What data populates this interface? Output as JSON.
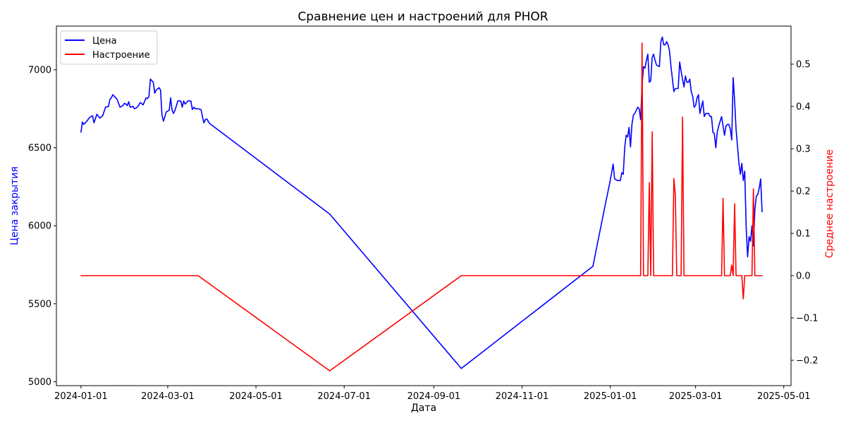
{
  "chart_data": {
    "type": "line",
    "title": "Сравнение цен и настроений для PHOR",
    "xlabel": "Дата",
    "ylabel_left": "Цена закрытия",
    "ylabel_right": "Среднее настроение",
    "x_ticks": [
      "2024-01-01",
      "2024-03-01",
      "2024-05-01",
      "2024-07-01",
      "2024-09-01",
      "2024-11-01",
      "2025-01-01",
      "2025-03-01",
      "2025-05-01"
    ],
    "y_left_ticks": [
      5000,
      5500,
      6000,
      6500,
      7000
    ],
    "y_right_ticks": [
      -0.2,
      -0.1,
      0.0,
      0.1,
      0.2,
      0.3,
      0.4,
      0.5
    ],
    "x_range": [
      "2023-12-15",
      "2025-05-06"
    ],
    "y_left_range": [
      4975,
      7280
    ],
    "y_right_range": [
      -0.26,
      0.59
    ],
    "legend": {
      "placement": "top-left",
      "entries": [
        "Цена",
        "Настроение"
      ]
    },
    "colors": {
      "price": "#0000ff",
      "sentiment": "#ff0000"
    },
    "grid": false,
    "series": [
      {
        "name": "Цена",
        "axis": "left",
        "color": "#0000ff",
        "points": [
          [
            "2024-01-01",
            6600
          ],
          [
            "2024-01-02",
            6665
          ],
          [
            "2024-01-03",
            6650
          ],
          [
            "2024-01-05",
            6670
          ],
          [
            "2024-01-07",
            6695
          ],
          [
            "2024-01-09",
            6705
          ],
          [
            "2024-01-10",
            6660
          ],
          [
            "2024-01-12",
            6715
          ],
          [
            "2024-01-14",
            6690
          ],
          [
            "2024-01-16",
            6705
          ],
          [
            "2024-01-18",
            6760
          ],
          [
            "2024-01-20",
            6765
          ],
          [
            "2024-01-21",
            6810
          ],
          [
            "2024-01-22",
            6820
          ],
          [
            "2024-01-23",
            6840
          ],
          [
            "2024-01-25",
            6820
          ],
          [
            "2024-01-26",
            6810
          ],
          [
            "2024-01-28",
            6760
          ],
          [
            "2024-01-30",
            6770
          ],
          [
            "2024-01-31",
            6785
          ],
          [
            "2024-02-01",
            6780
          ],
          [
            "2024-02-02",
            6770
          ],
          [
            "2024-02-03",
            6795
          ],
          [
            "2024-02-04",
            6760
          ],
          [
            "2024-02-06",
            6765
          ],
          [
            "2024-02-07",
            6750
          ],
          [
            "2024-02-09",
            6760
          ],
          [
            "2024-02-11",
            6790
          ],
          [
            "2024-02-13",
            6775
          ],
          [
            "2024-02-15",
            6820
          ],
          [
            "2024-02-16",
            6815
          ],
          [
            "2024-02-17",
            6830
          ],
          [
            "2024-02-18",
            6940
          ],
          [
            "2024-02-20",
            6920
          ],
          [
            "2024-02-21",
            6850
          ],
          [
            "2024-02-22",
            6870
          ],
          [
            "2024-02-24",
            6885
          ],
          [
            "2024-02-25",
            6870
          ],
          [
            "2024-02-26",
            6710
          ],
          [
            "2024-02-27",
            6670
          ],
          [
            "2024-02-28",
            6700
          ],
          [
            "2024-02-29",
            6730
          ],
          [
            "2024-03-02",
            6740
          ],
          [
            "2024-03-03",
            6820
          ],
          [
            "2024-03-04",
            6740
          ],
          [
            "2024-03-05",
            6720
          ],
          [
            "2024-03-06",
            6740
          ],
          [
            "2024-03-07",
            6770
          ],
          [
            "2024-03-08",
            6800
          ],
          [
            "2024-03-10",
            6800
          ],
          [
            "2024-03-11",
            6760
          ],
          [
            "2024-03-12",
            6800
          ],
          [
            "2024-03-13",
            6780
          ],
          [
            "2024-03-15",
            6800
          ],
          [
            "2024-03-17",
            6800
          ],
          [
            "2024-03-18",
            6745
          ],
          [
            "2024-03-19",
            6760
          ],
          [
            "2024-03-20",
            6750
          ],
          [
            "2024-03-22",
            6750
          ],
          [
            "2024-03-24",
            6745
          ],
          [
            "2024-03-25",
            6700
          ],
          [
            "2024-03-26",
            6660
          ],
          [
            "2024-03-27",
            6680
          ],
          [
            "2024-03-28",
            6685
          ],
          [
            "2024-03-30",
            6655
          ],
          [
            "2024-06-21",
            6075
          ],
          [
            "2024-09-20",
            5085
          ],
          [
            "2024-12-20",
            5740
          ],
          [
            "2024-12-28",
            6110
          ],
          [
            "2025-01-01",
            6290
          ],
          [
            "2025-01-03",
            6395
          ],
          [
            "2025-01-04",
            6300
          ],
          [
            "2025-01-06",
            6290
          ],
          [
            "2025-01-08",
            6290
          ],
          [
            "2025-01-09",
            6340
          ],
          [
            "2025-01-10",
            6330
          ],
          [
            "2025-01-11",
            6500
          ],
          [
            "2025-01-12",
            6580
          ],
          [
            "2025-01-13",
            6570
          ],
          [
            "2025-01-14",
            6630
          ],
          [
            "2025-01-15",
            6505
          ],
          [
            "2025-01-16",
            6650
          ],
          [
            "2025-01-17",
            6710
          ],
          [
            "2025-01-18",
            6720
          ],
          [
            "2025-01-20",
            6760
          ],
          [
            "2025-01-21",
            6750
          ],
          [
            "2025-01-22",
            6680
          ],
          [
            "2025-01-23",
            6900
          ],
          [
            "2025-01-24",
            7020
          ],
          [
            "2025-01-25",
            7010
          ],
          [
            "2025-01-26",
            7060
          ],
          [
            "2025-01-27",
            7100
          ],
          [
            "2025-01-28",
            6920
          ],
          [
            "2025-01-29",
            6930
          ],
          [
            "2025-01-30",
            7080
          ],
          [
            "2025-01-31",
            7100
          ],
          [
            "2025-02-01",
            7060
          ],
          [
            "2025-02-02",
            7030
          ],
          [
            "2025-02-04",
            7020
          ],
          [
            "2025-02-05",
            7180
          ],
          [
            "2025-02-06",
            7210
          ],
          [
            "2025-02-07",
            7160
          ],
          [
            "2025-02-08",
            7160
          ],
          [
            "2025-02-09",
            7180
          ],
          [
            "2025-02-10",
            7160
          ],
          [
            "2025-02-11",
            7120
          ],
          [
            "2025-02-12",
            7020
          ],
          [
            "2025-02-13",
            6940
          ],
          [
            "2025-02-14",
            6860
          ],
          [
            "2025-02-15",
            6880
          ],
          [
            "2025-02-17",
            6880
          ],
          [
            "2025-02-18",
            7050
          ],
          [
            "2025-02-19",
            6990
          ],
          [
            "2025-02-20",
            6940
          ],
          [
            "2025-02-21",
            6890
          ],
          [
            "2025-02-22",
            6960
          ],
          [
            "2025-02-23",
            6920
          ],
          [
            "2025-02-24",
            6920
          ],
          [
            "2025-02-25",
            6940
          ],
          [
            "2025-02-26",
            6860
          ],
          [
            "2025-02-27",
            6830
          ],
          [
            "2025-02-28",
            6760
          ],
          [
            "2025-03-01",
            6770
          ],
          [
            "2025-03-02",
            6820
          ],
          [
            "2025-03-03",
            6840
          ],
          [
            "2025-03-04",
            6720
          ],
          [
            "2025-03-05",
            6760
          ],
          [
            "2025-03-06",
            6800
          ],
          [
            "2025-03-07",
            6700
          ],
          [
            "2025-03-08",
            6720
          ],
          [
            "2025-03-10",
            6720
          ],
          [
            "2025-03-11",
            6700
          ],
          [
            "2025-03-12",
            6700
          ],
          [
            "2025-03-13",
            6600
          ],
          [
            "2025-03-14",
            6590
          ],
          [
            "2025-03-15",
            6500
          ],
          [
            "2025-03-16",
            6600
          ],
          [
            "2025-03-17",
            6640
          ],
          [
            "2025-03-19",
            6700
          ],
          [
            "2025-03-20",
            6640
          ],
          [
            "2025-03-21",
            6580
          ],
          [
            "2025-03-22",
            6640
          ],
          [
            "2025-03-23",
            6650
          ],
          [
            "2025-03-24",
            6650
          ],
          [
            "2025-03-25",
            6620
          ],
          [
            "2025-03-26",
            6550
          ],
          [
            "2025-03-27",
            6950
          ],
          [
            "2025-03-28",
            6800
          ],
          [
            "2025-03-29",
            6620
          ],
          [
            "2025-03-30",
            6510
          ],
          [
            "2025-03-31",
            6400
          ],
          [
            "2025-04-01",
            6330
          ],
          [
            "2025-04-02",
            6400
          ],
          [
            "2025-04-03",
            6290
          ],
          [
            "2025-04-04",
            6350
          ],
          [
            "2025-04-05",
            5990
          ],
          [
            "2025-04-06",
            5800
          ],
          [
            "2025-04-07",
            5930
          ],
          [
            "2025-04-08",
            5900
          ],
          [
            "2025-04-09",
            6000
          ],
          [
            "2025-04-10",
            5870
          ],
          [
            "2025-04-11",
            6100
          ],
          [
            "2025-04-12",
            6190
          ],
          [
            "2025-04-13",
            6200
          ],
          [
            "2025-04-14",
            6240
          ],
          [
            "2025-04-15",
            6300
          ],
          [
            "2025-04-16",
            6090
          ]
        ]
      },
      {
        "name": "Настроение",
        "axis": "right",
        "color": "#ff0000",
        "points": [
          [
            "2024-01-01",
            0.0
          ],
          [
            "2024-03-22",
            0.0
          ],
          [
            "2024-06-21",
            -0.225
          ],
          [
            "2024-09-20",
            0.0
          ],
          [
            "2025-01-22",
            0.0
          ],
          [
            "2025-01-23",
            0.55
          ],
          [
            "2025-01-24",
            0.0
          ],
          [
            "2025-01-27",
            0.0
          ],
          [
            "2025-01-28",
            0.22
          ],
          [
            "2025-01-29",
            0.0
          ],
          [
            "2025-01-30",
            0.34
          ],
          [
            "2025-01-31",
            0.0
          ],
          [
            "2025-02-13",
            0.0
          ],
          [
            "2025-02-14",
            0.23
          ],
          [
            "2025-02-15",
            0.19
          ],
          [
            "2025-02-16",
            0.0
          ],
          [
            "2025-02-19",
            0.0
          ],
          [
            "2025-02-20",
            0.375
          ],
          [
            "2025-02-21",
            0.0
          ],
          [
            "2025-03-19",
            0.0
          ],
          [
            "2025-03-20",
            0.183
          ],
          [
            "2025-03-21",
            0.0
          ],
          [
            "2025-03-25",
            0.0
          ],
          [
            "2025-03-26",
            0.025
          ],
          [
            "2025-03-27",
            0.0
          ],
          [
            "2025-03-28",
            0.17
          ],
          [
            "2025-03-29",
            0.0
          ],
          [
            "2025-04-02",
            0.0
          ],
          [
            "2025-04-03",
            -0.055
          ],
          [
            "2025-04-04",
            0.0
          ],
          [
            "2025-04-09",
            0.0
          ],
          [
            "2025-04-10",
            0.205
          ],
          [
            "2025-04-11",
            0.0
          ],
          [
            "2025-04-16",
            0.0
          ]
        ]
      }
    ]
  }
}
